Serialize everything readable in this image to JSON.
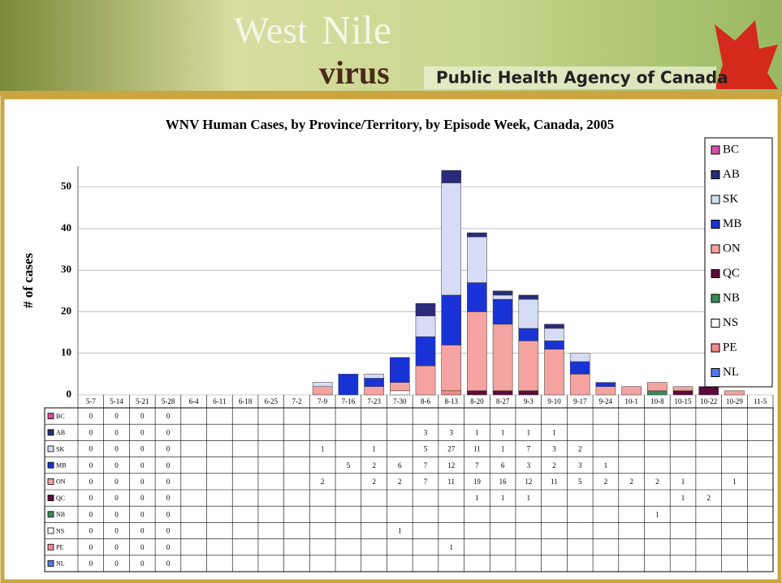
{
  "header": {
    "title_1": "West",
    "title_2": "Nile",
    "title_3": "virus",
    "agency": "Public Health Agency of Canada"
  },
  "chart_data": {
    "type": "stacked_bar",
    "title": "WNV Human Cases, by Province/Territory, by Episode Week,  Canada, 2005",
    "y_label": "# of cases",
    "ylim": [
      0,
      55
    ],
    "yticks": [
      0,
      10,
      20,
      30,
      40,
      50
    ],
    "grid": true,
    "legend": "right",
    "categories": [
      "5-7",
      "5-14",
      "5-21",
      "5-28",
      "6-4",
      "6-11",
      "6-18",
      "6-25",
      "7-2",
      "7-9",
      "7-16",
      "7-23",
      "7-30",
      "8-6",
      "8-13",
      "8-20",
      "8-27",
      "9-3",
      "9-10",
      "9-17",
      "9-24",
      "10-1",
      "10-8",
      "10-15",
      "10-22",
      "10-29",
      "11-5"
    ],
    "series": [
      {
        "name": "BC",
        "color": "#d64fa8",
        "values": [
          0,
          0,
          0,
          0,
          null,
          null,
          null,
          null,
          null,
          null,
          null,
          null,
          null,
          null,
          null,
          null,
          null,
          null,
          null,
          null,
          null,
          null,
          null,
          null,
          null,
          null,
          null
        ]
      },
      {
        "name": "AB",
        "color": "#2b2b7a",
        "values": [
          0,
          0,
          0,
          0,
          null,
          null,
          null,
          null,
          null,
          null,
          null,
          null,
          null,
          3,
          3,
          1,
          1,
          1,
          1,
          null,
          null,
          null,
          null,
          null,
          null,
          null,
          null
        ]
      },
      {
        "name": "SK",
        "color": "#d6dcf5",
        "values": [
          0,
          0,
          0,
          0,
          null,
          null,
          null,
          null,
          null,
          1,
          null,
          1,
          null,
          5,
          27,
          11,
          1,
          7,
          3,
          2,
          null,
          null,
          null,
          null,
          null,
          null,
          null
        ]
      },
      {
        "name": "MB",
        "color": "#1a33d6",
        "values": [
          0,
          0,
          0,
          0,
          null,
          null,
          null,
          null,
          null,
          null,
          5,
          2,
          6,
          7,
          12,
          7,
          6,
          3,
          2,
          3,
          1,
          null,
          null,
          null,
          null,
          null,
          null
        ]
      },
      {
        "name": "ON",
        "color": "#f4a3a0",
        "values": [
          0,
          0,
          0,
          0,
          null,
          null,
          null,
          null,
          null,
          2,
          null,
          2,
          2,
          7,
          11,
          19,
          16,
          12,
          11,
          5,
          2,
          2,
          2,
          1,
          null,
          1,
          null
        ]
      },
      {
        "name": "QC",
        "color": "#5c0a3c",
        "values": [
          0,
          0,
          0,
          0,
          null,
          null,
          null,
          null,
          null,
          null,
          null,
          null,
          null,
          null,
          null,
          1,
          1,
          1,
          null,
          null,
          null,
          null,
          null,
          1,
          2,
          null,
          null
        ]
      },
      {
        "name": "NB",
        "color": "#3a8a5a",
        "values": [
          0,
          0,
          0,
          0,
          null,
          null,
          null,
          null,
          null,
          null,
          null,
          null,
          null,
          null,
          null,
          null,
          null,
          null,
          null,
          null,
          null,
          null,
          1,
          null,
          null,
          null,
          null
        ]
      },
      {
        "name": "NS",
        "color": "#ffffff",
        "values": [
          0,
          0,
          0,
          0,
          null,
          null,
          null,
          null,
          null,
          null,
          null,
          null,
          1,
          null,
          null,
          null,
          null,
          null,
          null,
          null,
          null,
          null,
          null,
          null,
          null,
          null,
          null
        ]
      },
      {
        "name": "PE",
        "color": "#f08a8a",
        "values": [
          0,
          0,
          0,
          0,
          null,
          null,
          null,
          null,
          null,
          null,
          null,
          null,
          null,
          null,
          1,
          null,
          null,
          null,
          null,
          null,
          null,
          null,
          null,
          null,
          null,
          null,
          null
        ]
      },
      {
        "name": "NL",
        "color": "#5577ee",
        "values": [
          0,
          0,
          0,
          0,
          null,
          null,
          null,
          null,
          null,
          null,
          null,
          null,
          null,
          null,
          null,
          null,
          null,
          null,
          null,
          null,
          null,
          null,
          null,
          null,
          null,
          null,
          null
        ]
      }
    ]
  }
}
